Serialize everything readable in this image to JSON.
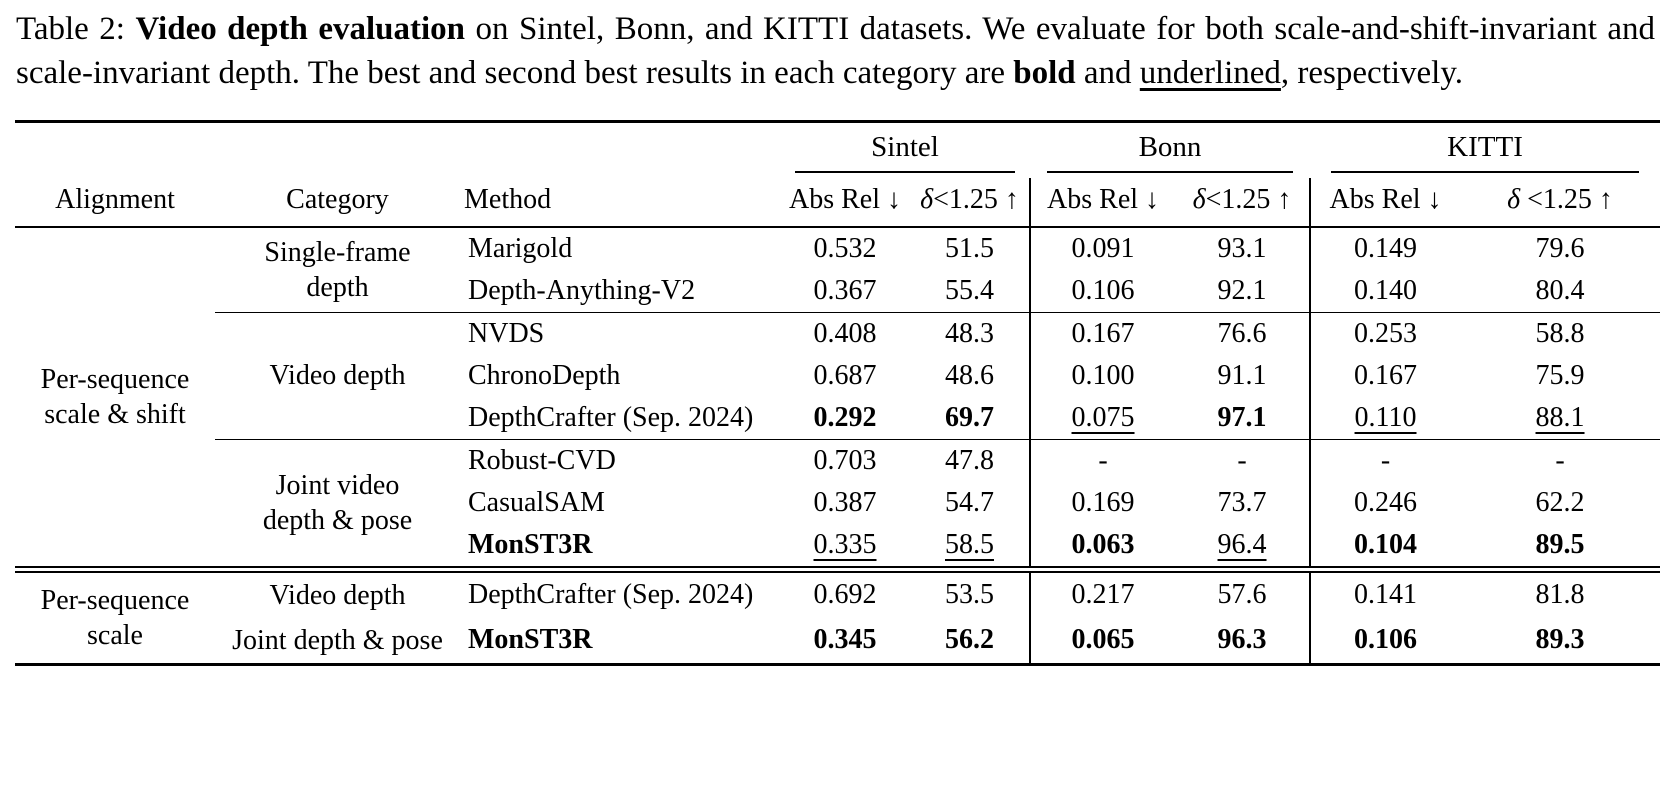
{
  "colors": {
    "text": "#000000",
    "background": "#ffffff"
  },
  "caption": {
    "segments": [
      {
        "text": "Table 2: "
      },
      {
        "text": "Video depth evaluation",
        "bold": true
      },
      {
        "text": " on Sintel, Bonn, and KITTI datasets. We evaluate for both scale-and-shift-invariant and scale-invariant depth. The best and second best results in each category are "
      },
      {
        "text": "bold",
        "bold": true
      },
      {
        "text": " and "
      },
      {
        "text": "underlined",
        "underline": true
      },
      {
        "text": ", respectively."
      }
    ]
  },
  "table": {
    "dataset_headers": [
      "Sintel",
      "Bonn",
      "KITTI"
    ],
    "column_headers": {
      "alignment": "Alignment",
      "category": "Category",
      "method": "Method",
      "metrics": [
        "Abs Rel ↓",
        "δ<1.25 ↑",
        "Abs Rel ↓",
        "δ<1.25 ↑",
        "Abs Rel ↓",
        "δ <1.25 ↑"
      ]
    },
    "sections": [
      {
        "alignment": "Per-sequence\nscale & shift",
        "groups": [
          {
            "category": "Single-frame\ndepth",
            "rows": [
              {
                "method": "Marigold",
                "cells": [
                  {
                    "v": "0.532"
                  },
                  {
                    "v": "51.5"
                  },
                  {
                    "v": "0.091"
                  },
                  {
                    "v": "93.1"
                  },
                  {
                    "v": "0.149"
                  },
                  {
                    "v": "79.6"
                  }
                ]
              },
              {
                "method": "Depth-Anything-V2",
                "cells": [
                  {
                    "v": "0.367"
                  },
                  {
                    "v": "55.4"
                  },
                  {
                    "v": "0.106"
                  },
                  {
                    "v": "92.1"
                  },
                  {
                    "v": "0.140"
                  },
                  {
                    "v": "80.4"
                  }
                ]
              }
            ]
          },
          {
            "category": "Video depth",
            "rule_above": true,
            "rows": [
              {
                "method": "NVDS",
                "cells": [
                  {
                    "v": "0.408"
                  },
                  {
                    "v": "48.3"
                  },
                  {
                    "v": "0.167"
                  },
                  {
                    "v": "76.6"
                  },
                  {
                    "v": "0.253"
                  },
                  {
                    "v": "58.8"
                  }
                ]
              },
              {
                "method": "ChronoDepth",
                "cells": [
                  {
                    "v": "0.687"
                  },
                  {
                    "v": "48.6"
                  },
                  {
                    "v": "0.100"
                  },
                  {
                    "v": "91.1"
                  },
                  {
                    "v": "0.167"
                  },
                  {
                    "v": "75.9"
                  }
                ]
              },
              {
                "method": "DepthCrafter (Sep. 2024)",
                "cells": [
                  {
                    "v": "0.292",
                    "b": true
                  },
                  {
                    "v": "69.7",
                    "b": true
                  },
                  {
                    "v": "0.075",
                    "u": true
                  },
                  {
                    "v": "97.1",
                    "b": true
                  },
                  {
                    "v": "0.110",
                    "u": true
                  },
                  {
                    "v": "88.1",
                    "u": true
                  }
                ]
              }
            ]
          },
          {
            "category": "Joint video\ndepth & pose",
            "rule_above": true,
            "rows": [
              {
                "method": "Robust-CVD",
                "cells": [
                  {
                    "v": "0.703"
                  },
                  {
                    "v": "47.8"
                  },
                  {
                    "v": "-"
                  },
                  {
                    "v": "-"
                  },
                  {
                    "v": "-"
                  },
                  {
                    "v": "-"
                  }
                ]
              },
              {
                "method": "CasualSAM",
                "cells": [
                  {
                    "v": "0.387"
                  },
                  {
                    "v": "54.7"
                  },
                  {
                    "v": "0.169"
                  },
                  {
                    "v": "73.7"
                  },
                  {
                    "v": "0.246"
                  },
                  {
                    "v": "62.2"
                  }
                ]
              },
              {
                "method": "MonST3R",
                "method_bold": true,
                "cells": [
                  {
                    "v": "0.335",
                    "u": true
                  },
                  {
                    "v": "58.5",
                    "u": true
                  },
                  {
                    "v": "0.063",
                    "b": true
                  },
                  {
                    "v": "96.4",
                    "u": true
                  },
                  {
                    "v": "0.104",
                    "b": true
                  },
                  {
                    "v": "89.5",
                    "b": true
                  }
                ]
              }
            ]
          }
        ]
      },
      {
        "alignment": "Per-sequence\nscale",
        "groups": [
          {
            "category": "Video depth",
            "rows": [
              {
                "method": "DepthCrafter (Sep. 2024)",
                "cells": [
                  {
                    "v": "0.692"
                  },
                  {
                    "v": "53.5"
                  },
                  {
                    "v": "0.217"
                  },
                  {
                    "v": "57.6"
                  },
                  {
                    "v": "0.141"
                  },
                  {
                    "v": "81.8"
                  }
                ]
              }
            ]
          },
          {
            "category": "Joint depth & pose",
            "rows": [
              {
                "method": "MonST3R",
                "method_bold": true,
                "cells": [
                  {
                    "v": "0.345",
                    "b": true
                  },
                  {
                    "v": "56.2",
                    "b": true
                  },
                  {
                    "v": "0.065",
                    "b": true
                  },
                  {
                    "v": "96.3",
                    "b": true
                  },
                  {
                    "v": "0.106",
                    "b": true
                  },
                  {
                    "v": "89.3",
                    "b": true
                  }
                ]
              }
            ]
          }
        ]
      }
    ]
  }
}
